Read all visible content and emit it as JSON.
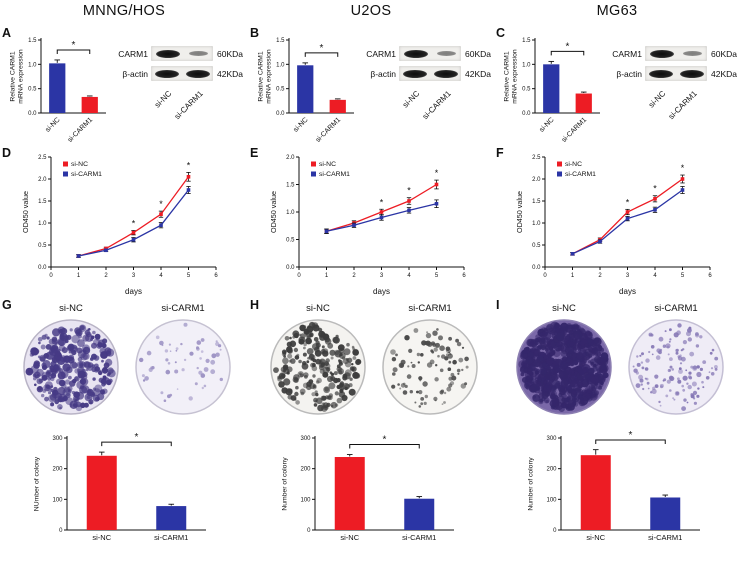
{
  "columns": [
    {
      "title": "MNNG/HOS"
    },
    {
      "title": "U2OS"
    },
    {
      "title": "MG63"
    }
  ],
  "panel_letters": [
    "A",
    "B",
    "C",
    "D",
    "E",
    "F",
    "G",
    "H",
    "I"
  ],
  "blot": {
    "bands": [
      {
        "protein": "CARM1",
        "size": "60KDa"
      },
      {
        "protein": "β-actin",
        "size": "42KDa"
      }
    ],
    "lanes": [
      "si-NC",
      "si-CARM1"
    ]
  },
  "colors": {
    "si_nc_red": "#ed1c24",
    "si_carm1_blue": "#2b35a5"
  },
  "chart_data": [
    {
      "panel": "A",
      "cell_line": "MNNG/HOS",
      "type": "bar",
      "categories": [
        "si-NC",
        "si-CARM1"
      ],
      "values": [
        1.02,
        0.33
      ],
      "errors": [
        0.07,
        0.02
      ],
      "colors": [
        "#2b35a5",
        "#ed1c24"
      ],
      "ylabel": "Relative CARM1\nmRNA expression",
      "ylim": [
        0,
        1.5
      ],
      "yticks": [
        "0.0",
        "0.5",
        "1.0",
        "1.5"
      ],
      "significance": "*"
    },
    {
      "panel": "B",
      "cell_line": "U2OS",
      "type": "bar",
      "categories": [
        "si-NC",
        "si-CARM1"
      ],
      "values": [
        0.98,
        0.27
      ],
      "errors": [
        0.05,
        0.02
      ],
      "colors": [
        "#2b35a5",
        "#ed1c24"
      ],
      "ylabel": "Relative CARM1\nmRNA expression",
      "ylim": [
        0,
        1.5
      ],
      "yticks": [
        "0.0",
        "0.5",
        "1.0",
        "1.5"
      ],
      "significance": "*"
    },
    {
      "panel": "C",
      "cell_line": "MG63",
      "type": "bar",
      "categories": [
        "si-NC",
        "si-CARM1"
      ],
      "values": [
        1.0,
        0.4
      ],
      "errors": [
        0.06,
        0.03
      ],
      "colors": [
        "#2b35a5",
        "#ed1c24"
      ],
      "ylabel": "Relative CARM1\nmRNA expression",
      "ylim": [
        0,
        1.5
      ],
      "yticks": [
        "0.0",
        "0.5",
        "1.0",
        "1.5"
      ],
      "significance": "*"
    },
    {
      "panel": "D",
      "cell_line": "MNNG/HOS",
      "type": "line",
      "x": [
        1,
        2,
        3,
        4,
        5
      ],
      "xlim": [
        0,
        6
      ],
      "xticks": [
        "0",
        "1",
        "2",
        "3",
        "4",
        "5",
        "6"
      ],
      "ylim": [
        0,
        2.5
      ],
      "yticks": [
        "0.0",
        "0.5",
        "1.0",
        "1.5",
        "2.0",
        "2.5"
      ],
      "xlabel": "days",
      "ylabel": "OD450 value",
      "series": [
        {
          "name": "si-NC",
          "color": "#ed1c24",
          "values": [
            0.25,
            0.42,
            0.78,
            1.2,
            2.05
          ],
          "errors": [
            0.03,
            0.03,
            0.05,
            0.07,
            0.1
          ]
        },
        {
          "name": "si-CARM1",
          "color": "#2b35a5",
          "values": [
            0.25,
            0.38,
            0.62,
            0.95,
            1.75
          ],
          "errors": [
            0.03,
            0.03,
            0.05,
            0.06,
            0.08
          ]
        }
      ],
      "sig_x": [
        3,
        4,
        5
      ],
      "significance": "*",
      "legend_position": "top-left"
    },
    {
      "panel": "E",
      "cell_line": "U2OS",
      "type": "line",
      "x": [
        1,
        2,
        3,
        4,
        5
      ],
      "xlim": [
        0,
        6
      ],
      "xticks": [
        "0",
        "1",
        "2",
        "3",
        "4",
        "5",
        "6"
      ],
      "ylim": [
        0,
        2.0
      ],
      "yticks": [
        "0.0",
        "0.5",
        "1.0",
        "1.5",
        "2.0"
      ],
      "xlabel": "days",
      "ylabel": "OD450 value",
      "series": [
        {
          "name": "si-NC",
          "color": "#ed1c24",
          "values": [
            0.65,
            0.8,
            1.0,
            1.2,
            1.5
          ],
          "errors": [
            0.04,
            0.04,
            0.05,
            0.06,
            0.08
          ]
        },
        {
          "name": "si-CARM1",
          "color": "#2b35a5",
          "values": [
            0.65,
            0.76,
            0.9,
            1.03,
            1.15
          ],
          "errors": [
            0.04,
            0.04,
            0.05,
            0.05,
            0.07
          ]
        }
      ],
      "sig_x": [
        3,
        4,
        5
      ],
      "significance": "*",
      "legend_position": "top-left"
    },
    {
      "panel": "F",
      "cell_line": "MG63",
      "type": "line",
      "x": [
        1,
        2,
        3,
        4,
        5
      ],
      "xlim": [
        0,
        6
      ],
      "xticks": [
        "0",
        "1",
        "2",
        "3",
        "4",
        "5",
        "6"
      ],
      "ylim": [
        0,
        2.5
      ],
      "yticks": [
        "0.0",
        "0.5",
        "1.0",
        "1.5",
        "2.0",
        "2.5"
      ],
      "xlabel": "days",
      "ylabel": "OD450 value",
      "series": [
        {
          "name": "si-NC",
          "color": "#ed1c24",
          "values": [
            0.3,
            0.62,
            1.25,
            1.55,
            2.0
          ],
          "errors": [
            0.03,
            0.04,
            0.06,
            0.07,
            0.09
          ]
        },
        {
          "name": "si-CARM1",
          "color": "#2b35a5",
          "values": [
            0.3,
            0.58,
            1.1,
            1.3,
            1.75
          ],
          "errors": [
            0.03,
            0.04,
            0.05,
            0.06,
            0.08
          ]
        }
      ],
      "sig_x": [
        3,
        4,
        5
      ],
      "significance": "*",
      "legend_position": "top-left"
    },
    {
      "panel": "G",
      "cell_line": "MNNG/HOS",
      "type": "bar",
      "categories": [
        "si-NC",
        "si-CARM1"
      ],
      "values": [
        242,
        78
      ],
      "errors": [
        12,
        6
      ],
      "colors": [
        "#ed1c24",
        "#2b35a5"
      ],
      "ylabel": "NUmber of colony",
      "ylim": [
        0,
        300
      ],
      "yticks": [
        "0",
        "100",
        "200",
        "300"
      ],
      "significance": "*"
    },
    {
      "panel": "H",
      "cell_line": "U2OS",
      "type": "bar",
      "categories": [
        "si-NC",
        "si-CARM1"
      ],
      "values": [
        238,
        102
      ],
      "errors": [
        8,
        7
      ],
      "colors": [
        "#ed1c24",
        "#2b35a5"
      ],
      "ylabel": "Number of colony",
      "ylim": [
        0,
        300
      ],
      "yticks": [
        "0",
        "100",
        "200",
        "300"
      ],
      "significance": "*"
    },
    {
      "panel": "I",
      "cell_line": "MG63",
      "type": "bar",
      "categories": [
        "si-NC",
        "si-CARM1"
      ],
      "values": [
        244,
        106
      ],
      "errors": [
        18,
        8
      ],
      "colors": [
        "#ed1c24",
        "#2b35a5"
      ],
      "ylabel": "Number of colony",
      "ylim": [
        0,
        300
      ],
      "yticks": [
        "0",
        "100",
        "200",
        "300"
      ],
      "significance": "*"
    }
  ],
  "colony_assays": [
    {
      "labels": [
        "si-NC",
        "si-CARM1"
      ],
      "plates": [
        {
          "bg": "#e9e5f2",
          "rim": "#b9b4c6",
          "dot": "#463a85",
          "count": 300,
          "dot_min": 1.2,
          "dot_max": 4.2
        },
        {
          "bg": "#f2f0f8",
          "rim": "#c6c2d2",
          "dot": "#9a8fc2",
          "count": 55,
          "dot_min": 0.8,
          "dot_max": 2.4
        }
      ]
    },
    {
      "labels": [
        "si-NC",
        "si-CARM1"
      ],
      "plates": [
        {
          "bg": "#f4f3f0",
          "rim": "#bbbbbb",
          "dot": "#3c3c3c",
          "count": 230,
          "dot_min": 1.2,
          "dot_max": 3.6
        },
        {
          "bg": "#f6f5f2",
          "rim": "#bbbbbb",
          "dot": "#4a4a4a",
          "count": 95,
          "dot_min": 0.9,
          "dot_max": 2.8
        }
      ]
    },
    {
      "labels": [
        "si-NC",
        "si-CARM1"
      ],
      "plates": [
        {
          "bg": "#7a68a8",
          "rim": "#8d80b2",
          "dot": "#35276b",
          "count": 650,
          "dot_min": 1.5,
          "dot_max": 4.5
        },
        {
          "bg": "#efecf6",
          "rim": "#c4bfd4",
          "dot": "#8577b5",
          "count": 130,
          "dot_min": 0.9,
          "dot_max": 2.6
        }
      ]
    }
  ]
}
